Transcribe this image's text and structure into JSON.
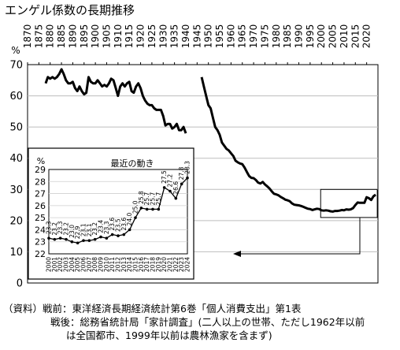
{
  "chart_data": [
    {
      "type": "line",
      "title": "エンゲル係数の長期推移",
      "y_unit_label": "%",
      "xlim": [
        1870,
        2025
      ],
      "ylim": [
        0,
        70
      ],
      "x_ticks": [
        1870,
        1875,
        1880,
        1885,
        1890,
        1895,
        1900,
        1905,
        1910,
        1915,
        1920,
        1925,
        1930,
        1935,
        1940,
        1945,
        1950,
        1955,
        1960,
        1965,
        1970,
        1975,
        1980,
        1985,
        1990,
        1995,
        2000,
        2005,
        2010,
        2015,
        2020
      ],
      "y_ticks": [
        0,
        10,
        20,
        30,
        40,
        50,
        60,
        70
      ],
      "grid": true,
      "series": [
        {
          "values": [
            [
              1878,
              64
            ],
            [
              1879,
              66
            ],
            [
              1880,
              65.5
            ],
            [
              1881,
              66
            ],
            [
              1882,
              65.5
            ],
            [
              1883,
              66
            ],
            [
              1884,
              67
            ],
            [
              1885,
              68.5
            ],
            [
              1886,
              67
            ],
            [
              1887,
              65
            ],
            [
              1888,
              64
            ],
            [
              1889,
              64
            ],
            [
              1890,
              64.5
            ],
            [
              1891,
              62.5
            ],
            [
              1892,
              61.5
            ],
            [
              1893,
              63
            ],
            [
              1894,
              61.5
            ],
            [
              1895,
              60.5
            ],
            [
              1896,
              61
            ],
            [
              1897,
              66
            ],
            [
              1898,
              64.5
            ],
            [
              1899,
              64
            ],
            [
              1900,
              64
            ],
            [
              1901,
              65
            ],
            [
              1902,
              64
            ],
            [
              1903,
              63
            ],
            [
              1904,
              63.5
            ],
            [
              1905,
              63
            ],
            [
              1906,
              64
            ],
            [
              1907,
              65.5
            ],
            [
              1908,
              65
            ],
            [
              1909,
              62.5
            ],
            [
              1910,
              60
            ],
            [
              1911,
              63
            ],
            [
              1912,
              64
            ],
            [
              1913,
              63
            ],
            [
              1914,
              64
            ],
            [
              1915,
              64.5
            ],
            [
              1916,
              61.5
            ],
            [
              1917,
              61
            ],
            [
              1918,
              63
            ],
            [
              1919,
              64
            ],
            [
              1920,
              62.5
            ],
            [
              1921,
              60
            ],
            [
              1922,
              58.5
            ],
            [
              1923,
              57.5
            ],
            [
              1924,
              57
            ],
            [
              1925,
              57
            ],
            [
              1926,
              56
            ],
            [
              1927,
              55.5
            ],
            [
              1928,
              55.5
            ],
            [
              1929,
              55.5
            ],
            [
              1930,
              53.5
            ],
            [
              1931,
              50.5
            ],
            [
              1932,
              51
            ],
            [
              1933,
              51
            ],
            [
              1934,
              49.5
            ],
            [
              1935,
              50
            ],
            [
              1936,
              51
            ],
            [
              1937,
              49
            ],
            [
              1938,
              49
            ],
            [
              1939,
              50
            ],
            [
              1940,
              48
            ]
          ]
        },
        {
          "values": [
            [
              1947,
              66
            ],
            [
              1948,
              63
            ],
            [
              1949,
              60
            ],
            [
              1950,
              57
            ],
            [
              1951,
              56
            ],
            [
              1952,
              53
            ],
            [
              1953,
              50
            ],
            [
              1954,
              49
            ],
            [
              1955,
              47.5
            ],
            [
              1956,
              45
            ],
            [
              1957,
              44
            ],
            [
              1958,
              43
            ],
            [
              1959,
              42.5
            ],
            [
              1960,
              41.6
            ],
            [
              1961,
              40.7
            ],
            [
              1962,
              39.2
            ],
            [
              1963,
              38.7
            ],
            [
              1964,
              38.3
            ],
            [
              1965,
              38.1
            ],
            [
              1966,
              37.0
            ],
            [
              1967,
              35.6
            ],
            [
              1968,
              34.3
            ],
            [
              1969,
              33.7
            ],
            [
              1970,
              33.6
            ],
            [
              1971,
              33.0
            ],
            [
              1972,
              32.2
            ],
            [
              1973,
              31.9
            ],
            [
              1974,
              32.4
            ],
            [
              1975,
              31.6
            ],
            [
              1976,
              31.0
            ],
            [
              1977,
              30.3
            ],
            [
              1978,
              29.4
            ],
            [
              1979,
              28.6
            ],
            [
              1980,
              28.4
            ],
            [
              1981,
              28.1
            ],
            [
              1982,
              27.6
            ],
            [
              1983,
              27.2
            ],
            [
              1984,
              26.7
            ],
            [
              1985,
              26.5
            ],
            [
              1986,
              26.2
            ],
            [
              1987,
              25.5
            ],
            [
              1988,
              25.1
            ],
            [
              1989,
              25.0
            ],
            [
              1990,
              24.9
            ],
            [
              1991,
              24.7
            ],
            [
              1992,
              24.4
            ],
            [
              1993,
              24.1
            ],
            [
              1994,
              23.8
            ],
            [
              1995,
              23.7
            ],
            [
              1996,
              23.4
            ],
            [
              1997,
              23.6
            ],
            [
              1998,
              23.8
            ],
            [
              1999,
              23.7
            ],
            [
              2000,
              23.3
            ],
            [
              2001,
              23.2
            ],
            [
              2002,
              23.3
            ],
            [
              2003,
              23.2
            ],
            [
              2004,
              23.0
            ],
            [
              2005,
              22.9
            ],
            [
              2006,
              23.1
            ],
            [
              2007,
              23.1
            ],
            [
              2008,
              23.2
            ],
            [
              2009,
              23.4
            ],
            [
              2010,
              23.3
            ],
            [
              2011,
              23.6
            ],
            [
              2012,
              23.5
            ],
            [
              2013,
              23.6
            ],
            [
              2014,
              24.0
            ],
            [
              2015,
              25.0
            ],
            [
              2016,
              25.8
            ],
            [
              2017,
              25.7
            ],
            [
              2018,
              25.7
            ],
            [
              2019,
              25.7
            ],
            [
              2020,
              27.5
            ],
            [
              2021,
              27.2
            ],
            [
              2022,
              26.6
            ],
            [
              2023,
              27.8
            ],
            [
              2024,
              28.3
            ]
          ]
        }
      ],
      "zoom_box": {
        "x": [
          2000,
          2024
        ],
        "y": [
          21,
          30
        ]
      }
    },
    {
      "type": "line",
      "title": "最近の動き",
      "y_unit_label": "%",
      "ylim": [
        22,
        29
      ],
      "y_ticks": [
        22,
        23,
        24,
        25,
        26,
        27,
        28,
        29
      ],
      "categories": [
        "2000",
        "2001",
        "2002",
        "2003",
        "2004",
        "2005",
        "2006",
        "2007",
        "2008",
        "2009",
        "2010",
        "2011",
        "2012",
        "2013",
        "2014",
        "2015",
        "2016",
        "2017",
        "2018",
        "2019",
        "2020",
        "2021",
        "2022",
        "2023",
        "2024"
      ],
      "values": [
        23.3,
        23.2,
        23.3,
        23.2,
        23.0,
        22.9,
        23.1,
        23.1,
        23.2,
        23.4,
        23.3,
        23.6,
        23.5,
        23.6,
        24.0,
        25.0,
        25.8,
        25.7,
        25.7,
        25.7,
        27.5,
        27.2,
        26.6,
        27.8,
        28.3
      ],
      "data_labels": [
        "23.3",
        "23.2",
        "23.3",
        "23.2",
        "23.0",
        "22.9",
        "23.1",
        "23.1",
        "23.2",
        "23.4",
        "23.3",
        "23.6",
        "23.5",
        "23.6",
        "24.0",
        "25.0",
        "25.8",
        "25.7",
        "25.7",
        "25.7",
        "27.5",
        "27.2",
        "26.6",
        "27.8",
        "28.3"
      ]
    }
  ],
  "notes": {
    "line1": "（資料）戦前：東洋経済長期経済統計第6巻「個人消費支出」第1表",
    "line2": "戦後：総務省統計局「家計調査」(二人以上の世帯、ただし1962年以前",
    "line3": "は全国都市、1999年以前は農林漁家を含まず)"
  }
}
